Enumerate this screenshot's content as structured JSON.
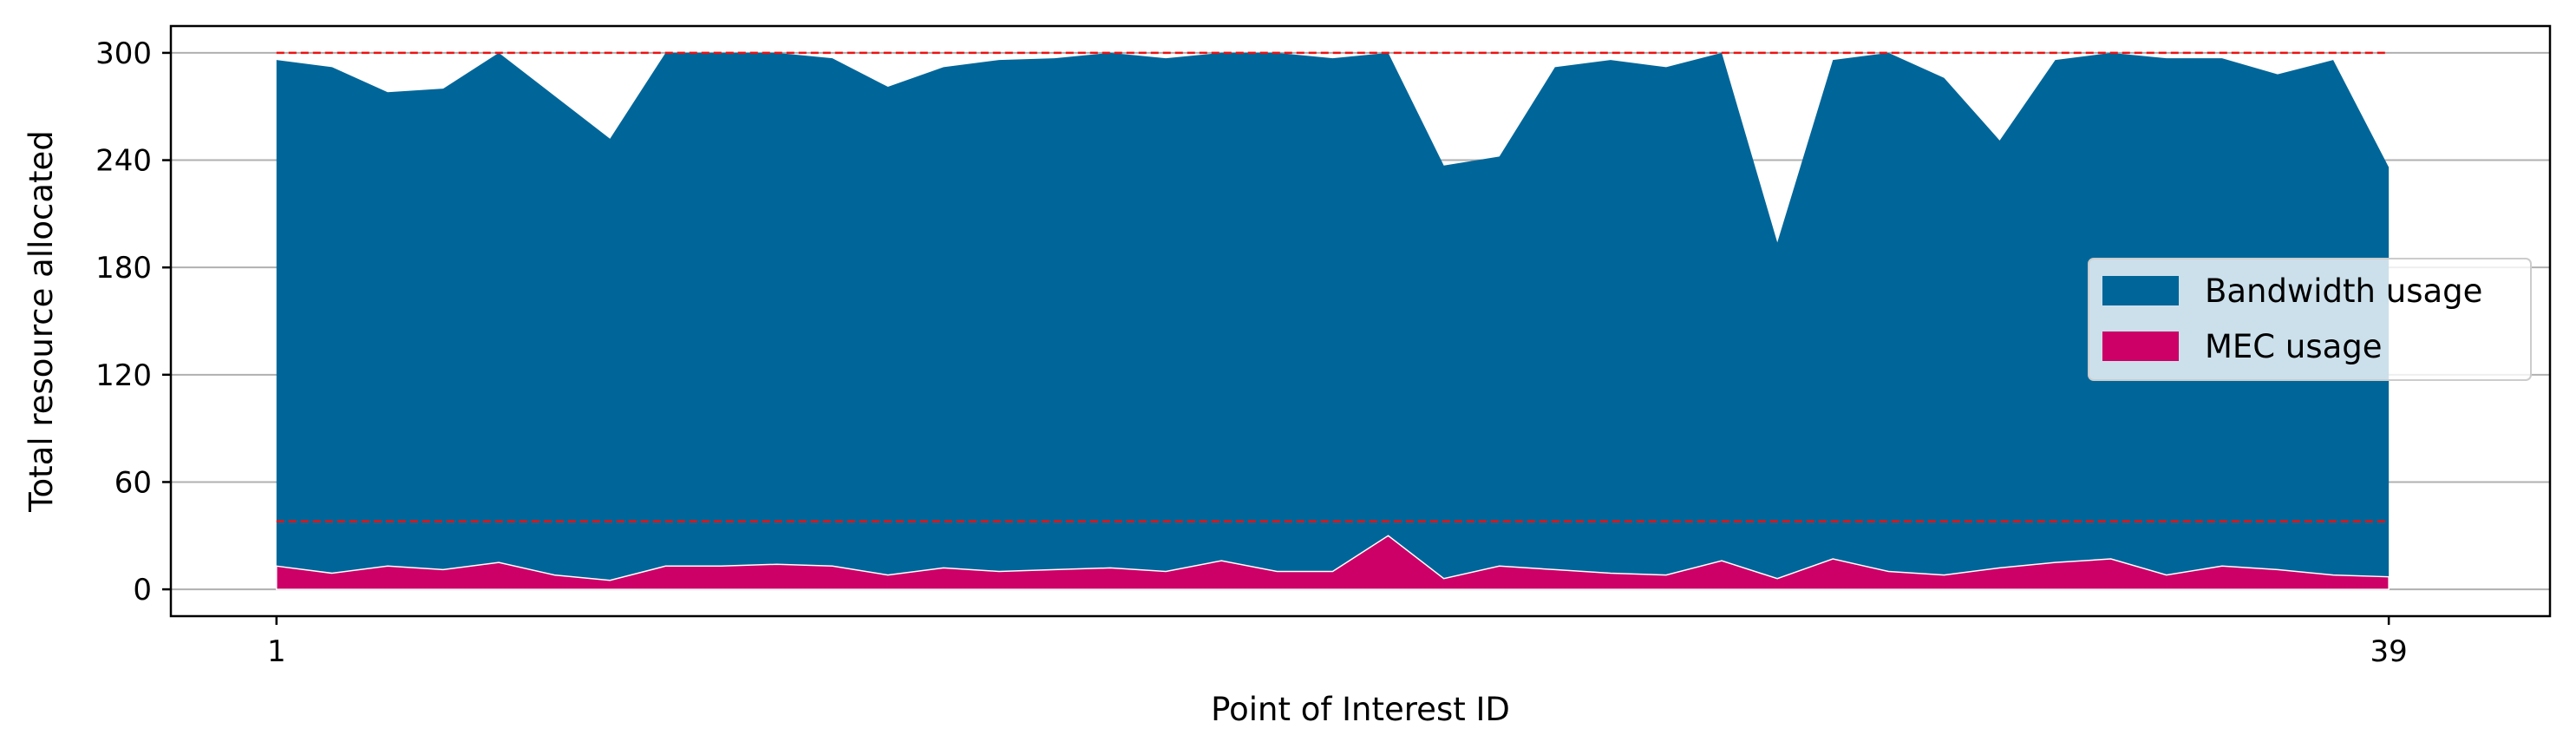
{
  "chart_data": {
    "type": "area",
    "stacked": false,
    "xlabel": "Point of Interest ID",
    "ylabel": "Total resource allocated",
    "x": [
      1,
      2,
      3,
      4,
      5,
      6,
      7,
      8,
      9,
      10,
      11,
      12,
      13,
      14,
      15,
      16,
      17,
      18,
      19,
      20,
      21,
      22,
      23,
      24,
      25,
      26,
      27,
      28,
      29,
      30,
      31,
      32,
      33,
      34,
      35,
      36,
      37,
      38,
      39
    ],
    "xticks": [
      1,
      39
    ],
    "xtick_labels": [
      "1",
      "39"
    ],
    "yticks": [
      0,
      60,
      120,
      180,
      240,
      300
    ],
    "ytick_labels": [
      "0",
      "60",
      "120",
      "180",
      "240",
      "300"
    ],
    "xlim": [
      -0.9,
      41.9
    ],
    "ylim": [
      -15,
      315
    ],
    "grid": "y",
    "legend_position": "center-right",
    "series": [
      {
        "name": "Bandwidth usage",
        "color": "#006699",
        "values": [
          296,
          292,
          278,
          280,
          300,
          276,
          252,
          300,
          300,
          300,
          297,
          281,
          292,
          296,
          297,
          300,
          297,
          300,
          300,
          297,
          300,
          237,
          242,
          292,
          296,
          292,
          300,
          194,
          296,
          300,
          286,
          251,
          296,
          300,
          297,
          297,
          288,
          296,
          236
        ]
      },
      {
        "name": "MEC usage",
        "color": "#cc0066",
        "values": [
          13,
          9,
          13,
          11,
          15,
          8,
          5,
          13,
          13,
          14,
          13,
          8,
          12,
          10,
          11,
          12,
          10,
          16,
          10,
          10,
          30,
          6,
          13,
          11,
          9,
          8,
          16,
          6,
          17,
          10,
          8,
          12,
          15,
          17,
          8,
          13,
          11,
          8,
          7
        ]
      }
    ],
    "reference_lines": [
      {
        "y": 300,
        "color": "#ee1111",
        "style": "dashed"
      },
      {
        "y": 38,
        "color": "#ee1111",
        "style": "dashed"
      }
    ]
  }
}
